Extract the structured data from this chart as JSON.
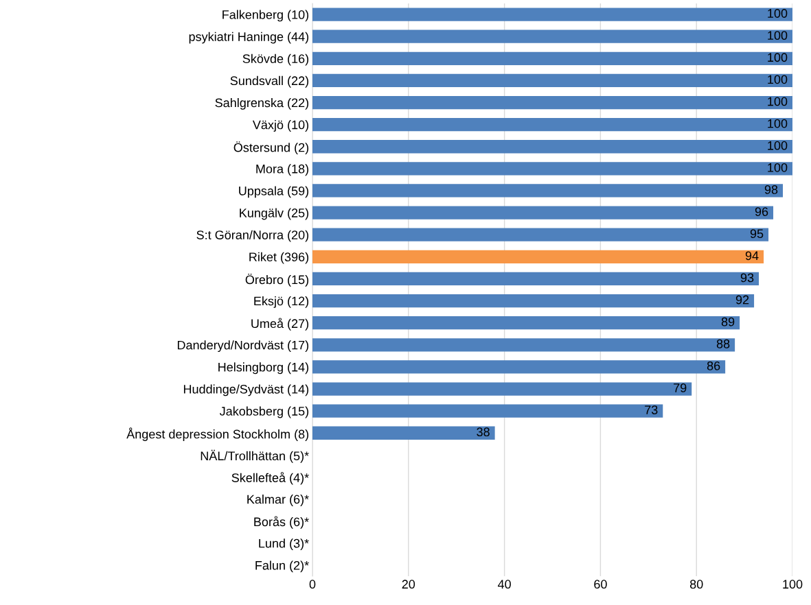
{
  "chart_data": {
    "type": "bar",
    "orientation": "horizontal",
    "categories": [
      "Falkenberg (10)",
      "psykiatri Haninge (44)",
      "Skövde (16)",
      "Sundsvall (22)",
      "Sahlgrenska (22)",
      "Växjö (10)",
      "Östersund (2)",
      "Mora (18)",
      "Uppsala (59)",
      "Kungälv (25)",
      "S:t Göran/Norra (20)",
      "Riket (396)",
      "Örebro (15)",
      "Eksjö (12)",
      "Umeå (27)",
      "Danderyd/Nordväst (17)",
      "Helsingborg (14)",
      "Huddinge/Sydväst (14)",
      "Jakobsberg (15)",
      "Ångest depression Stockholm (8)",
      "NÄL/Trollhättan (5)*",
      "Skellefteå (4)*",
      "Kalmar (6)*",
      "Borås (6)*",
      "Lund (3)*",
      "Falun (2)*"
    ],
    "values": [
      100,
      100,
      100,
      100,
      100,
      100,
      100,
      100,
      98,
      96,
      95,
      94,
      93,
      92,
      89,
      88,
      86,
      79,
      73,
      38,
      null,
      null,
      null,
      null,
      null,
      null
    ],
    "colors": [
      "#4f81bd",
      "#4f81bd",
      "#4f81bd",
      "#4f81bd",
      "#4f81bd",
      "#4f81bd",
      "#4f81bd",
      "#4f81bd",
      "#4f81bd",
      "#4f81bd",
      "#4f81bd",
      "#f79646",
      "#4f81bd",
      "#4f81bd",
      "#4f81bd",
      "#4f81bd",
      "#4f81bd",
      "#4f81bd",
      "#4f81bd",
      "#4f81bd",
      "#4f81bd",
      "#4f81bd",
      "#4f81bd",
      "#4f81bd",
      "#4f81bd",
      "#4f81bd"
    ],
    "xlim": [
      0,
      100
    ],
    "xticks": [
      0,
      20,
      40,
      60,
      80,
      100
    ],
    "grid": "x",
    "data_labels": true
  }
}
